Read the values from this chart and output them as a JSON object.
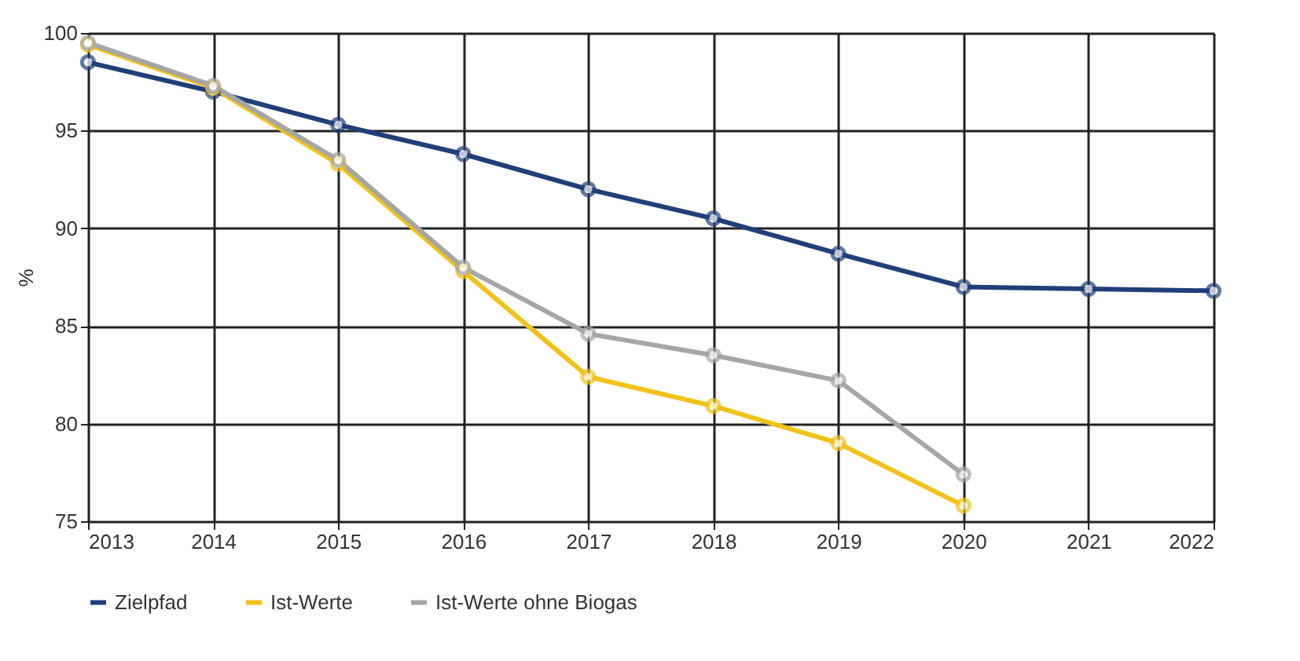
{
  "chart_data": {
    "type": "line",
    "ylabel": "%",
    "x": [
      2013,
      2014,
      2015,
      2016,
      2017,
      2018,
      2019,
      2020,
      2021,
      2022
    ],
    "xlim": [
      2013,
      2022
    ],
    "xticks": [
      2013,
      2014,
      2015,
      2016,
      2017,
      2018,
      2019,
      2020,
      2021,
      2022
    ],
    "ylim": [
      75,
      100
    ],
    "yticks": [
      75,
      80,
      85,
      90,
      95,
      100
    ],
    "grid": true,
    "legend": "bottom",
    "marker": "circle",
    "line_style": "solid",
    "series": [
      {
        "name": "Zielpfad",
        "color": "#1f3f7a",
        "values": [
          98.5,
          97.0,
          95.3,
          93.8,
          92.0,
          90.5,
          88.7,
          87.0,
          86.9,
          86.8
        ]
      },
      {
        "name": "Ist-Werte",
        "color": "#f2c21b",
        "values": [
          99.4,
          97.2,
          93.3,
          87.8,
          82.4,
          80.9,
          79.0,
          75.8,
          null,
          null
        ]
      },
      {
        "name": "Ist-Werte ohne Biogas",
        "color": "#a6a6a6",
        "values": [
          99.5,
          97.3,
          93.5,
          88.0,
          84.6,
          83.5,
          82.2,
          77.4,
          null,
          null
        ]
      }
    ]
  }
}
